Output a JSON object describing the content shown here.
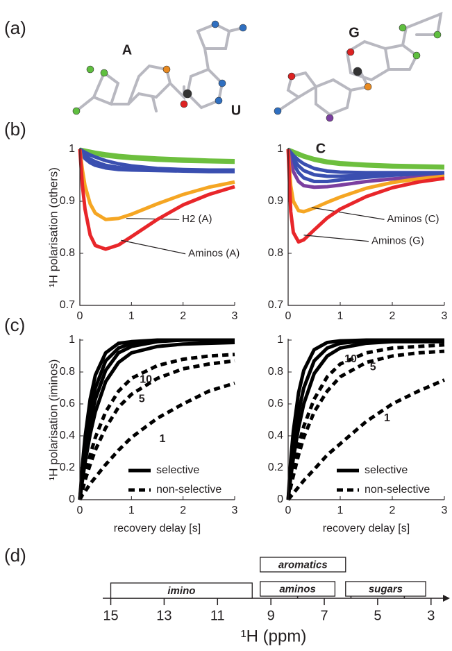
{
  "figure": {
    "panel_labels": [
      "(a)",
      "(b)",
      "(c)",
      "(d)"
    ],
    "molecule_labels": [
      "A",
      "U",
      "G",
      "C"
    ]
  },
  "chart_data": [
    {
      "type": "line",
      "ylabel": "¹H polarisation (others)",
      "xlim": [
        0,
        3
      ],
      "ylim": [
        0.7,
        1
      ],
      "xticks": [
        0,
        1,
        2,
        3
      ],
      "yticks": [
        0.7,
        0.8,
        0.9,
        1
      ],
      "x": [
        0,
        0.05,
        0.1,
        0.2,
        0.3,
        0.5,
        0.75,
        1,
        1.5,
        2,
        2.5,
        3
      ],
      "series": [
        {
          "color": "#6dbf3e",
          "values": [
            1,
            0.999,
            0.998,
            0.996,
            0.994,
            0.991,
            0.988,
            0.986,
            0.983,
            0.981,
            0.979,
            0.978
          ]
        },
        {
          "color": "#6dbf3e",
          "values": [
            1,
            0.998,
            0.996,
            0.993,
            0.991,
            0.987,
            0.984,
            0.982,
            0.979,
            0.977,
            0.976,
            0.975
          ]
        },
        {
          "color": "#3a4fb0",
          "values": [
            1,
            0.997,
            0.994,
            0.989,
            0.985,
            0.978,
            0.972,
            0.968,
            0.963,
            0.961,
            0.96,
            0.96
          ]
        },
        {
          "color": "#3a4fb0",
          "values": [
            1,
            0.994,
            0.988,
            0.981,
            0.976,
            0.969,
            0.965,
            0.962,
            0.96,
            0.959,
            0.958,
            0.958
          ]
        },
        {
          "color": "#3a4fb0",
          "values": [
            1,
            0.99,
            0.982,
            0.974,
            0.969,
            0.964,
            0.961,
            0.96,
            0.959,
            0.958,
            0.957,
            0.957
          ]
        },
        {
          "name": "H2 (A)",
          "color": "#f5a623",
          "values": [
            1,
            0.96,
            0.93,
            0.895,
            0.877,
            0.865,
            0.867,
            0.875,
            0.895,
            0.913,
            0.927,
            0.937
          ]
        },
        {
          "name": "Aminos (A)",
          "color": "#e8262a",
          "values": [
            1,
            0.93,
            0.885,
            0.835,
            0.815,
            0.808,
            0.816,
            0.832,
            0.865,
            0.893,
            0.913,
            0.928
          ]
        }
      ]
    },
    {
      "type": "line",
      "xlim": [
        0,
        3
      ],
      "ylim": [
        0.7,
        1
      ],
      "xticks": [
        0,
        1,
        2,
        3
      ],
      "yticks": [
        0.7,
        0.8,
        0.9,
        1
      ],
      "x": [
        0,
        0.05,
        0.1,
        0.2,
        0.3,
        0.5,
        0.75,
        1,
        1.5,
        2,
        2.5,
        3
      ],
      "series": [
        {
          "color": "#6dbf3e",
          "values": [
            1,
            0.998,
            0.996,
            0.992,
            0.988,
            0.982,
            0.977,
            0.974,
            0.971,
            0.969,
            0.968,
            0.967
          ]
        },
        {
          "color": "#6dbf3e",
          "values": [
            1,
            0.997,
            0.994,
            0.989,
            0.985,
            0.979,
            0.974,
            0.971,
            0.968,
            0.966,
            0.965,
            0.964
          ]
        },
        {
          "color": "#3a4fb0",
          "values": [
            1,
            0.994,
            0.988,
            0.979,
            0.972,
            0.963,
            0.958,
            0.956,
            0.955,
            0.955,
            0.955,
            0.955
          ]
        },
        {
          "color": "#3a4fb0",
          "values": [
            1,
            0.99,
            0.981,
            0.968,
            0.959,
            0.951,
            0.948,
            0.948,
            0.95,
            0.952,
            0.953,
            0.954
          ]
        },
        {
          "color": "#3a4fb0",
          "values": [
            1,
            0.985,
            0.972,
            0.955,
            0.945,
            0.938,
            0.938,
            0.941,
            0.946,
            0.95,
            0.952,
            0.953
          ]
        },
        {
          "color": "#7b3fa0",
          "values": [
            1,
            0.975,
            0.957,
            0.938,
            0.93,
            0.927,
            0.928,
            0.931,
            0.938,
            0.943,
            0.946,
            0.948
          ]
        },
        {
          "name": "Aminos (C)",
          "color": "#f5a623",
          "values": [
            1,
            0.93,
            0.9,
            0.882,
            0.88,
            0.887,
            0.898,
            0.908,
            0.925,
            0.936,
            0.943,
            0.948
          ]
        },
        {
          "name": "Aminos (G)",
          "color": "#e8262a",
          "values": [
            1,
            0.88,
            0.84,
            0.822,
            0.826,
            0.845,
            0.868,
            0.885,
            0.909,
            0.926,
            0.937,
            0.944
          ]
        }
      ]
    },
    {
      "type": "line",
      "ylabel": "¹H polarisation (iminos)",
      "xlabel": "recovery delay [s]",
      "xlim": [
        0,
        3
      ],
      "ylim": [
        0,
        1
      ],
      "xticks": [
        0,
        1,
        2,
        3
      ],
      "yticks": [
        0,
        0.2,
        0.4,
        0.6,
        0.8,
        1
      ],
      "x": [
        0,
        0.05,
        0.1,
        0.2,
        0.3,
        0.5,
        0.75,
        1,
        1.5,
        2,
        2.5,
        3
      ],
      "legend": [
        {
          "label": "selective",
          "style": "solid"
        },
        {
          "label": "non-selective",
          "style": "dashed"
        }
      ],
      "series": [
        {
          "color": "#000000",
          "style": "solid",
          "values": [
            0,
            0.22,
            0.39,
            0.63,
            0.78,
            0.92,
            0.98,
            0.99,
            1,
            1,
            1,
            1
          ]
        },
        {
          "color": "#000000",
          "style": "solid",
          "values": [
            0,
            0.18,
            0.33,
            0.55,
            0.7,
            0.87,
            0.95,
            0.98,
            0.995,
            1,
            1,
            1
          ]
        },
        {
          "color": "#000000",
          "style": "solid",
          "values": [
            0,
            0.15,
            0.28,
            0.49,
            0.63,
            0.81,
            0.92,
            0.96,
            0.99,
            1,
            1,
            1
          ]
        },
        {
          "color": "#000000",
          "style": "solid",
          "values": [
            0,
            0.12,
            0.23,
            0.41,
            0.55,
            0.74,
            0.86,
            0.92,
            0.96,
            0.975,
            0.98,
            0.985
          ]
        },
        {
          "name": "10",
          "color": "#000000",
          "style": "dashed",
          "values": [
            0,
            0.08,
            0.15,
            0.28,
            0.39,
            0.55,
            0.68,
            0.76,
            0.84,
            0.88,
            0.9,
            0.91
          ]
        },
        {
          "name": "5",
          "color": "#000000",
          "style": "dashed",
          "values": [
            0,
            0.06,
            0.12,
            0.22,
            0.31,
            0.45,
            0.58,
            0.66,
            0.76,
            0.82,
            0.85,
            0.87
          ]
        },
        {
          "name": "1",
          "color": "#000000",
          "style": "dashed",
          "values": [
            0,
            0.03,
            0.05,
            0.1,
            0.14,
            0.22,
            0.31,
            0.39,
            0.51,
            0.6,
            0.68,
            0.73
          ]
        }
      ]
    },
    {
      "type": "line",
      "xlabel": "recovery delay [s]",
      "xlim": [
        0,
        3
      ],
      "ylim": [
        0,
        1
      ],
      "xticks": [
        0,
        1,
        2,
        3
      ],
      "yticks": [
        0,
        0.2,
        0.4,
        0.6,
        0.8,
        1
      ],
      "x": [
        0,
        0.05,
        0.1,
        0.2,
        0.3,
        0.5,
        0.75,
        1,
        1.5,
        2,
        2.5,
        3
      ],
      "legend": [
        {
          "label": "selective",
          "style": "solid"
        },
        {
          "label": "non-selective",
          "style": "dashed"
        }
      ],
      "series": [
        {
          "color": "#000000",
          "style": "solid",
          "values": [
            0,
            0.25,
            0.43,
            0.67,
            0.81,
            0.94,
            0.985,
            0.995,
            1,
            1,
            1,
            1
          ]
        },
        {
          "color": "#000000",
          "style": "solid",
          "values": [
            0,
            0.18,
            0.33,
            0.55,
            0.7,
            0.87,
            0.95,
            0.98,
            0.995,
            1,
            1,
            1
          ]
        },
        {
          "color": "#000000",
          "style": "solid",
          "values": [
            0,
            0.14,
            0.26,
            0.45,
            0.6,
            0.79,
            0.9,
            0.95,
            0.98,
            0.99,
            0.99,
            0.99
          ]
        },
        {
          "name": "10",
          "color": "#000000",
          "style": "dashed",
          "values": [
            0,
            0.1,
            0.19,
            0.34,
            0.46,
            0.63,
            0.77,
            0.85,
            0.92,
            0.95,
            0.96,
            0.97
          ]
        },
        {
          "name": "5",
          "color": "#000000",
          "style": "dashed",
          "values": [
            0,
            0.08,
            0.15,
            0.28,
            0.39,
            0.55,
            0.68,
            0.77,
            0.86,
            0.9,
            0.92,
            0.93
          ]
        },
        {
          "name": "1",
          "color": "#000000",
          "style": "dashed",
          "values": [
            0,
            0.02,
            0.04,
            0.08,
            0.12,
            0.19,
            0.28,
            0.35,
            0.49,
            0.6,
            0.68,
            0.75
          ]
        }
      ]
    },
    {
      "type": "range",
      "xlabel": "¹H (ppm)",
      "xlim": [
        15.3,
        2.5
      ],
      "xticks": [
        15,
        13,
        11,
        9,
        7,
        5,
        3
      ],
      "minor_xticks": [
        14,
        12,
        10,
        8,
        6,
        4
      ],
      "regions": [
        {
          "name": "imino",
          "range": [
            15,
            9.7
          ]
        },
        {
          "name": "aromatics",
          "range": [
            9.4,
            6.2
          ]
        },
        {
          "name": "aminos",
          "range": [
            9.4,
            6.6
          ]
        },
        {
          "name": "sugars",
          "range": [
            6.2,
            3.2
          ]
        }
      ]
    }
  ]
}
